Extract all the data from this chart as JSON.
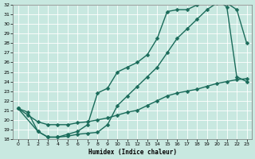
{
  "xlabel": "Humidex (Indice chaleur)",
  "ylabel": "",
  "xlim": [
    -0.5,
    23.5
  ],
  "ylim": [
    18,
    32
  ],
  "xticks": [
    0,
    1,
    2,
    3,
    4,
    5,
    6,
    7,
    8,
    9,
    10,
    11,
    12,
    13,
    14,
    15,
    16,
    17,
    18,
    19,
    20,
    21,
    22,
    23
  ],
  "yticks": [
    18,
    19,
    20,
    21,
    22,
    23,
    24,
    25,
    26,
    27,
    28,
    29,
    30,
    31,
    32
  ],
  "bg_color": "#c8e8e0",
  "line_color": "#1a6b5a",
  "grid_color": "#ffffff",
  "line1_x": [
    0,
    1,
    2,
    3,
    4,
    5,
    6,
    7,
    8,
    9,
    10,
    11,
    12,
    13,
    14,
    15,
    16,
    17,
    18,
    19,
    20,
    21,
    22,
    23
  ],
  "line1_y": [
    21.2,
    20.8,
    18.8,
    18.2,
    18.2,
    18.3,
    18.5,
    18.6,
    18.7,
    19.5,
    21.5,
    22.5,
    23.5,
    24.5,
    25.5,
    27.0,
    28.5,
    29.5,
    30.5,
    31.5,
    32.2,
    32.2,
    31.5,
    28.0
  ],
  "line2_x": [
    0,
    2,
    3,
    4,
    5,
    6,
    7,
    8,
    9,
    10,
    11,
    12,
    13,
    14,
    15,
    16,
    17,
    18,
    19,
    20,
    21,
    22,
    23
  ],
  "line2_y": [
    21.2,
    18.8,
    18.2,
    18.2,
    18.5,
    18.8,
    19.5,
    22.8,
    23.3,
    25.0,
    25.5,
    26.0,
    26.8,
    28.5,
    31.3,
    31.5,
    31.5,
    32.0,
    32.5,
    32.5,
    31.8,
    24.5,
    24.0
  ],
  "line3_x": [
    0,
    1,
    2,
    3,
    4,
    5,
    6,
    7,
    8,
    9,
    10,
    11,
    12,
    13,
    14,
    15,
    16,
    17,
    18,
    19,
    20,
    21,
    22,
    23
  ],
  "line3_y": [
    21.2,
    20.5,
    19.8,
    19.5,
    19.5,
    19.5,
    19.7,
    19.8,
    20.0,
    20.2,
    20.5,
    20.8,
    21.0,
    21.5,
    22.0,
    22.5,
    22.8,
    23.0,
    23.2,
    23.5,
    23.8,
    24.0,
    24.2,
    24.3
  ],
  "marker": "D",
  "markersize": 2.5,
  "linewidth": 1.0
}
